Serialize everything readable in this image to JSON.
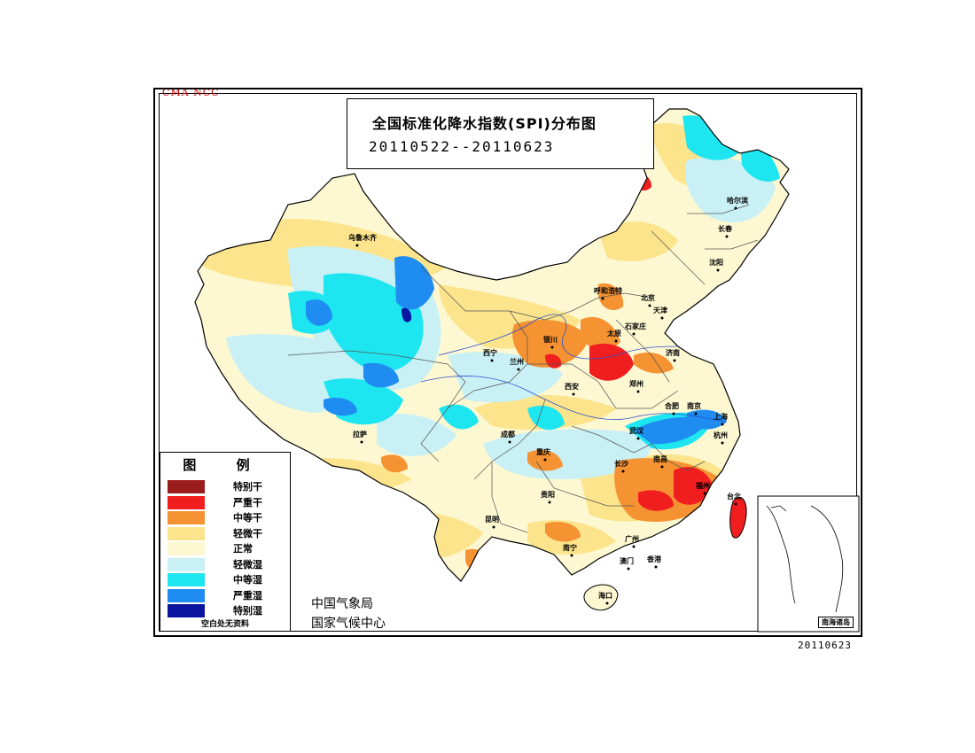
{
  "brand": "CMA NCC",
  "title": "全国标准化降水指数(SPI)分布图",
  "date_range": "20110522--20110623",
  "date_stamp": "20110623",
  "legend": {
    "title": "图 例",
    "items": [
      {
        "label": "特别干",
        "color": "#9b1c1c"
      },
      {
        "label": "严重干",
        "color": "#f01e1e"
      },
      {
        "label": "中等干",
        "color": "#f59232"
      },
      {
        "label": "轻微干",
        "color": "#fbe48c"
      },
      {
        "label": "正常",
        "color": "#fdf8d2"
      },
      {
        "label": "轻微湿",
        "color": "#c8f0f5"
      },
      {
        "label": "中等湿",
        "color": "#1ee6f0"
      },
      {
        "label": "严重湿",
        "color": "#1e8cf0"
      },
      {
        "label": "特别湿",
        "color": "#0a14a0"
      }
    ],
    "note": "空白处无资料"
  },
  "agency": {
    "line1": "中国气象局",
    "line2": "国家气候中心"
  },
  "inset_label": "南海诸岛",
  "cities": [
    {
      "name": "乌鲁木齐",
      "id": "urumqi"
    },
    {
      "name": "哈尔滨",
      "id": "harbin"
    },
    {
      "name": "长春",
      "id": "changchun"
    },
    {
      "name": "沈阳",
      "id": "shenyang"
    },
    {
      "name": "呼和浩特",
      "id": "hohhot"
    },
    {
      "name": "北京",
      "id": "beijing"
    },
    {
      "name": "天津",
      "id": "tianjin"
    },
    {
      "name": "石家庄",
      "id": "shijiazhuang"
    },
    {
      "name": "太原",
      "id": "taiyuan"
    },
    {
      "name": "银川",
      "id": "yinchuan"
    },
    {
      "name": "济南",
      "id": "jinan"
    },
    {
      "name": "西宁",
      "id": "xining"
    },
    {
      "name": "兰州",
      "id": "lanzhou"
    },
    {
      "name": "郑州",
      "id": "zhengzhou"
    },
    {
      "name": "西安",
      "id": "xian"
    },
    {
      "name": "合肥",
      "id": "hefei"
    },
    {
      "name": "南京",
      "id": "nanjing"
    },
    {
      "name": "上海",
      "id": "shanghai"
    },
    {
      "name": "拉萨",
      "id": "lhasa"
    },
    {
      "name": "成都",
      "id": "chengdu"
    },
    {
      "name": "武汉",
      "id": "wuhan"
    },
    {
      "name": "杭州",
      "id": "hangzhou"
    },
    {
      "name": "重庆",
      "id": "chongqing"
    },
    {
      "name": "长沙",
      "id": "changsha"
    },
    {
      "name": "南昌",
      "id": "nanchang"
    },
    {
      "name": "贵阳",
      "id": "guiyang"
    },
    {
      "name": "福州",
      "id": "fuzhou"
    },
    {
      "name": "台北",
      "id": "taipei"
    },
    {
      "name": "昆明",
      "id": "kunming"
    },
    {
      "name": "南宁",
      "id": "nanning"
    },
    {
      "name": "广州",
      "id": "guangzhou"
    },
    {
      "name": "澳门",
      "id": "macau"
    },
    {
      "name": "香港",
      "id": "hongkong"
    },
    {
      "name": "海口",
      "id": "haikou"
    }
  ]
}
